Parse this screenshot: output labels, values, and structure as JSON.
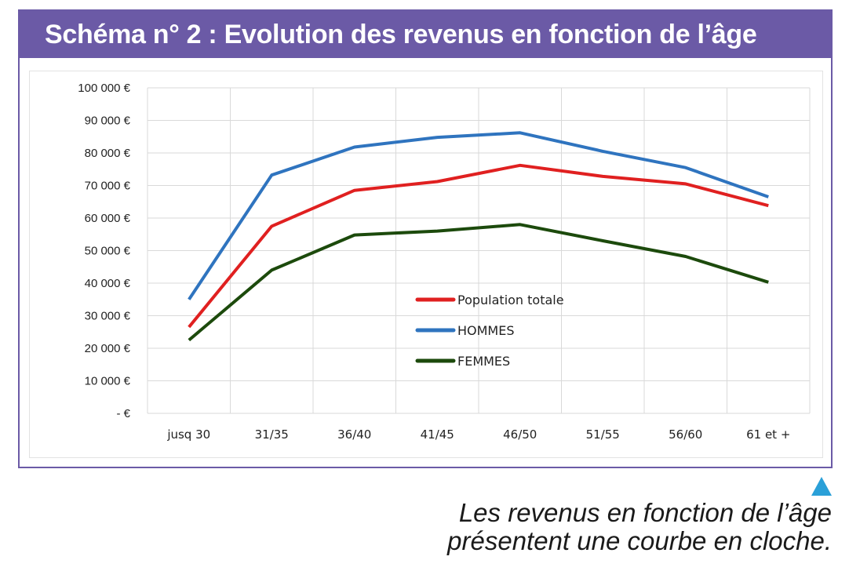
{
  "title": "Schéma n° 2 : Evolution des revenus en fonction de l’âge",
  "caption": {
    "line1": "Les revenus en fonction de l’âge",
    "line2": "présentent une courbe en cloche."
  },
  "colors": {
    "banner": "#6b5aa6",
    "accent_triangle": "#2aa0d8"
  },
  "chart_data": {
    "type": "line",
    "categories": [
      "jusq 30",
      "31/35",
      "36/40",
      "41/45",
      "46/50",
      "51/55",
      "56/60",
      "61 et +"
    ],
    "ylim": [
      0,
      100000
    ],
    "yticks": [
      0,
      10000,
      20000,
      30000,
      40000,
      50000,
      60000,
      70000,
      80000,
      90000,
      100000
    ],
    "ytick_labels": [
      "-   €",
      "10 000 €",
      "20 000 €",
      "30 000 €",
      "40 000 €",
      "50 000 €",
      "60 000 €",
      "70 000 €",
      "80 000 €",
      "90 000 €",
      "100 000 €"
    ],
    "grid": true,
    "legend_position": "center",
    "series": [
      {
        "name": "Population totale",
        "color": "#e02020",
        "values": [
          26500,
          57500,
          68500,
          71200,
          76200,
          72800,
          70500,
          63800
        ]
      },
      {
        "name": "HOMMES",
        "color": "#2f74bf",
        "values": [
          35000,
          73200,
          81800,
          84800,
          86200,
          80500,
          75500,
          66500
        ]
      },
      {
        "name": "FEMMES",
        "color": "#1c4a0c",
        "values": [
          22500,
          44000,
          54800,
          56000,
          58000,
          53000,
          48200,
          40300
        ]
      }
    ]
  }
}
